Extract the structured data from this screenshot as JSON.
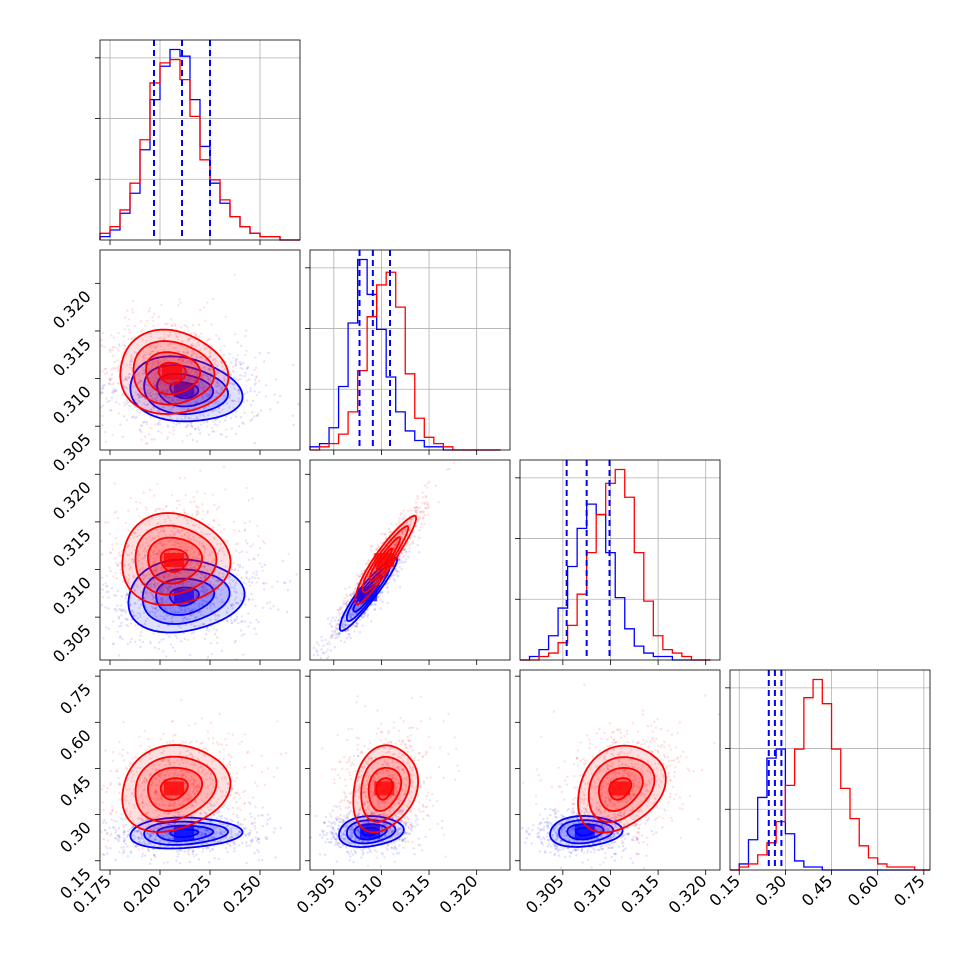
{
  "chart_data": {
    "type": "corner",
    "n_params": 4,
    "series_colors": {
      "red": "#ff0000",
      "blue": "#0000ff"
    },
    "axes": [
      {
        "range": [
          0.17,
          0.27
        ],
        "ticks": [
          0.175,
          0.2,
          0.225,
          0.25
        ],
        "tick_labels": [
          "0.175",
          "0.200",
          "0.225",
          "0.250"
        ]
      },
      {
        "range": [
          0.3025,
          0.3235
        ],
        "ticks": [
          0.305,
          0.31,
          0.315,
          0.32
        ],
        "tick_labels": [
          "0.305",
          "0.310",
          "0.315",
          "0.320"
        ]
      },
      {
        "range": [
          0.3005,
          0.3215
        ],
        "ticks": [
          0.305,
          0.31,
          0.315,
          0.32
        ],
        "tick_labels": [
          "0.305",
          "0.310",
          "0.315",
          "0.320"
        ]
      },
      {
        "range": [
          0.12,
          0.77
        ],
        "ticks": [
          0.15,
          0.3,
          0.45,
          0.6,
          0.75
        ],
        "tick_labels": [
          "0.15",
          "0.30",
          "0.45",
          "0.60",
          "0.75"
        ]
      }
    ],
    "histograms": [
      {
        "bin_edges": [
          0.17,
          0.175,
          0.18,
          0.185,
          0.19,
          0.195,
          0.2,
          0.205,
          0.21,
          0.215,
          0.22,
          0.225,
          0.23,
          0.235,
          0.24,
          0.245,
          0.25,
          0.255,
          0.26,
          0.265,
          0.27
        ],
        "red": [
          2,
          4,
          9,
          17,
          30,
          47,
          53,
          54,
          48,
          37,
          24,
          18,
          12,
          7,
          4,
          2,
          1,
          1,
          0,
          0
        ],
        "blue": [
          1,
          3,
          8,
          14,
          27,
          42,
          52,
          57,
          55,
          42,
          28,
          17,
          11,
          7,
          4,
          2,
          1,
          1,
          0,
          0
        ],
        "quantile_lines": [
          0.197,
          0.211,
          0.225
        ]
      },
      {
        "bin_edges": [
          0.3025,
          0.3035,
          0.3045,
          0.3055,
          0.3065,
          0.3075,
          0.3085,
          0.3095,
          0.3105,
          0.3115,
          0.3125,
          0.3135,
          0.3145,
          0.3155,
          0.3165,
          0.3175,
          0.3185,
          0.3195,
          0.3205,
          0.3215,
          0.3225
        ],
        "red": [
          0,
          1,
          2,
          5,
          12,
          25,
          42,
          52,
          56,
          45,
          24,
          10,
          4,
          2,
          1,
          0,
          0,
          0,
          0,
          0
        ],
        "blue": [
          1,
          2,
          7,
          20,
          40,
          60,
          49,
          38,
          23,
          12,
          6,
          3,
          1,
          1,
          0,
          0,
          0,
          0,
          0,
          0
        ],
        "quantile_lines": [
          0.3077,
          0.3091,
          0.3109
        ]
      },
      {
        "bin_edges": [
          0.3005,
          0.3015,
          0.3025,
          0.3035,
          0.3045,
          0.3055,
          0.3065,
          0.3075,
          0.3085,
          0.3095,
          0.3105,
          0.3115,
          0.3125,
          0.3135,
          0.3145,
          0.3155,
          0.3165,
          0.3175,
          0.3185,
          0.3195,
          0.3205
        ],
        "red": [
          0,
          0,
          1,
          2,
          5,
          10,
          19,
          31,
          42,
          51,
          55,
          47,
          31,
          17,
          7,
          3,
          2,
          1,
          0,
          0
        ],
        "blue": [
          0,
          1,
          3,
          7,
          15,
          27,
          38,
          45,
          42,
          31,
          18,
          9,
          4,
          2,
          1,
          1,
          0,
          0,
          0,
          0
        ],
        "quantile_lines": [
          0.3054,
          0.3075,
          0.3099
        ]
      },
      {
        "bin_edges": [
          0.12,
          0.15,
          0.18,
          0.21,
          0.24,
          0.27,
          0.3,
          0.33,
          0.36,
          0.39,
          0.42,
          0.45,
          0.48,
          0.51,
          0.54,
          0.57,
          0.6,
          0.63,
          0.66,
          0.69,
          0.72,
          0.75,
          0.77
        ],
        "red": [
          0,
          1,
          2,
          5,
          9,
          16,
          28,
          40,
          57,
          63,
          55,
          40,
          27,
          17,
          8,
          4,
          2,
          1,
          1,
          1,
          0,
          0
        ],
        "blue": [
          0,
          2,
          10,
          24,
          37,
          40,
          12,
          3,
          1,
          1,
          0,
          0,
          0,
          0,
          0,
          0,
          0,
          0,
          0,
          0,
          0,
          0
        ],
        "quantile_lines": [
          0.246,
          0.266,
          0.287
        ]
      }
    ],
    "pairs": [
      {
        "row": 1,
        "col": 0,
        "red": {
          "mean": [
            0.206,
            0.3106
          ],
          "sd": [
            0.0135,
            0.0022
          ],
          "rho": -0.05
        },
        "blue": {
          "mean": [
            0.212,
            0.3088
          ],
          "sd": [
            0.014,
            0.0017
          ],
          "rho": -0.15
        }
      },
      {
        "row": 2,
        "col": 0,
        "red": {
          "mean": [
            0.207,
            0.311
          ],
          "sd": [
            0.0135,
            0.0024
          ],
          "rho": 0.0
        },
        "blue": {
          "mean": [
            0.212,
            0.3072
          ],
          "sd": [
            0.0145,
            0.0019
          ],
          "rho": 0.1
        }
      },
      {
        "row": 2,
        "col": 1,
        "red": {
          "mean": [
            0.3103,
            0.311
          ],
          "sd": [
            0.0016,
            0.0023
          ],
          "rho": 0.93
        },
        "blue": {
          "mean": [
            0.3085,
            0.3074
          ],
          "sd": [
            0.0015,
            0.0019
          ],
          "rho": 0.93
        }
      },
      {
        "row": 3,
        "col": 0,
        "red": {
          "mean": [
            0.207,
            0.385
          ],
          "sd": [
            0.0135,
            0.07
          ],
          "rho": 0.15
        },
        "blue": {
          "mean": [
            0.212,
            0.24
          ],
          "sd": [
            0.014,
            0.025
          ],
          "rho": 0.1
        }
      },
      {
        "row": 3,
        "col": 1,
        "red": {
          "mean": [
            0.3103,
            0.385
          ],
          "sd": [
            0.0017,
            0.07
          ],
          "rho": 0.2
        },
        "blue": {
          "mean": [
            0.3088,
            0.245
          ],
          "sd": [
            0.0017,
            0.025
          ],
          "rho": 0.15
        }
      },
      {
        "row": 3,
        "col": 2,
        "red": {
          "mean": [
            0.311,
            0.385
          ],
          "sd": [
            0.0023,
            0.07
          ],
          "rho": 0.25
        },
        "blue": {
          "mean": [
            0.3073,
            0.245
          ],
          "sd": [
            0.0019,
            0.025
          ],
          "rho": 0.1
        }
      }
    ],
    "contour_levels_sigma": [
      0.5,
      1.0,
      1.5,
      2.0
    ],
    "grid": true,
    "legend": "none"
  }
}
